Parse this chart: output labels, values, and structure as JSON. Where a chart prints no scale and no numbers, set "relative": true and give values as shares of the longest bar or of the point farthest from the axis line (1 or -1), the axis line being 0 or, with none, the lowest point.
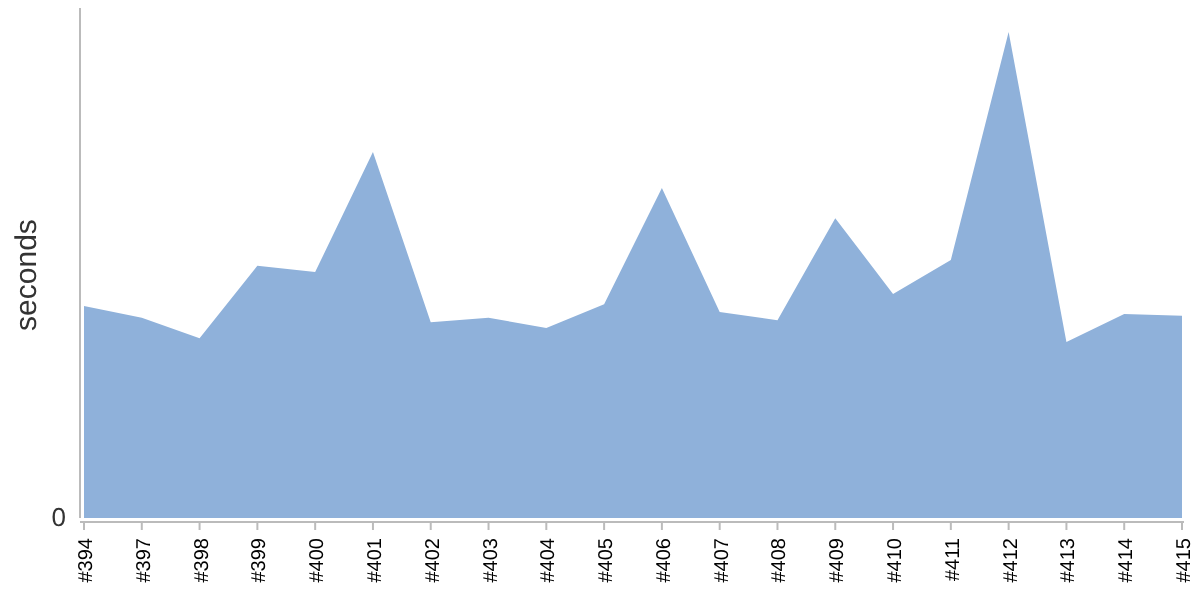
{
  "chart_data": {
    "type": "area",
    "relative": true,
    "ylabel": "seconds",
    "annotations": [
      "0"
    ],
    "categories": [
      "#394",
      "#397",
      "#398",
      "#399",
      "#400",
      "#401",
      "#402",
      "#403",
      "#404",
      "#405",
      "#406",
      "#407",
      "#408",
      "#409",
      "#410",
      "#411",
      "#412",
      "#413",
      "#414",
      "#415"
    ],
    "series": [
      {
        "color": "#8fb1da",
        "values": [
          0.436,
          0.412,
          0.37,
          0.519,
          0.506,
          0.753,
          0.403,
          0.412,
          0.391,
          0.44,
          0.679,
          0.424,
          0.407,
          0.617,
          0.461,
          0.531,
          1,
          0.362,
          0.42,
          0.416
        ]
      }
    ]
  }
}
